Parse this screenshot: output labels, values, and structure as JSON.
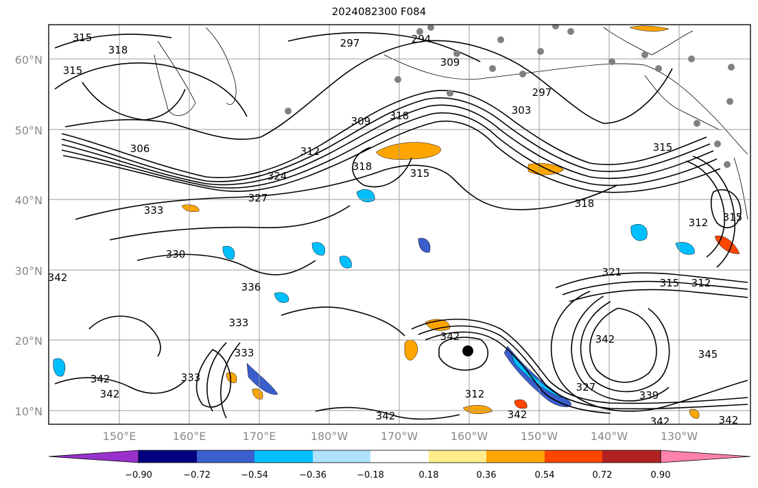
{
  "title": "2024082300 F084",
  "lat_labels": [
    "10°N",
    "20°N",
    "30°N",
    "40°N",
    "50°N",
    "60°N"
  ],
  "lon_labels": [
    "150°E",
    "160°E",
    "170°E",
    "180°W",
    "170°W",
    "160°W",
    "150°W",
    "140°W",
    "130°W"
  ],
  "contour_labels": [
    "315",
    "318",
    "315",
    "297",
    "294",
    "309",
    "297",
    "303",
    "309",
    "318",
    "312",
    "306",
    "324",
    "318",
    "315",
    "315",
    "333",
    "327",
    "318",
    "312",
    "315",
    "330",
    "336",
    "321",
    "315",
    "312",
    "333",
    "342",
    "333",
    "333",
    "342",
    "342",
    "342",
    "345",
    "327",
    "339",
    "342",
    "342",
    "342",
    "342",
    "312",
    "342"
  ],
  "colorbar": {
    "colors": [
      "#9932CC",
      "#000080",
      "#3A5FCD",
      "#00BFFF",
      "#B0E2FF",
      "#FFFFFF",
      "#FFEC8B",
      "#FFA500",
      "#FF4500",
      "#B22222",
      "#FF82AB"
    ],
    "ticks": [
      "−0.90",
      "−0.72",
      "−0.54",
      "−0.36",
      "−0.18",
      "0.18",
      "0.36",
      "0.54",
      "0.72",
      "0.90"
    ]
  }
}
